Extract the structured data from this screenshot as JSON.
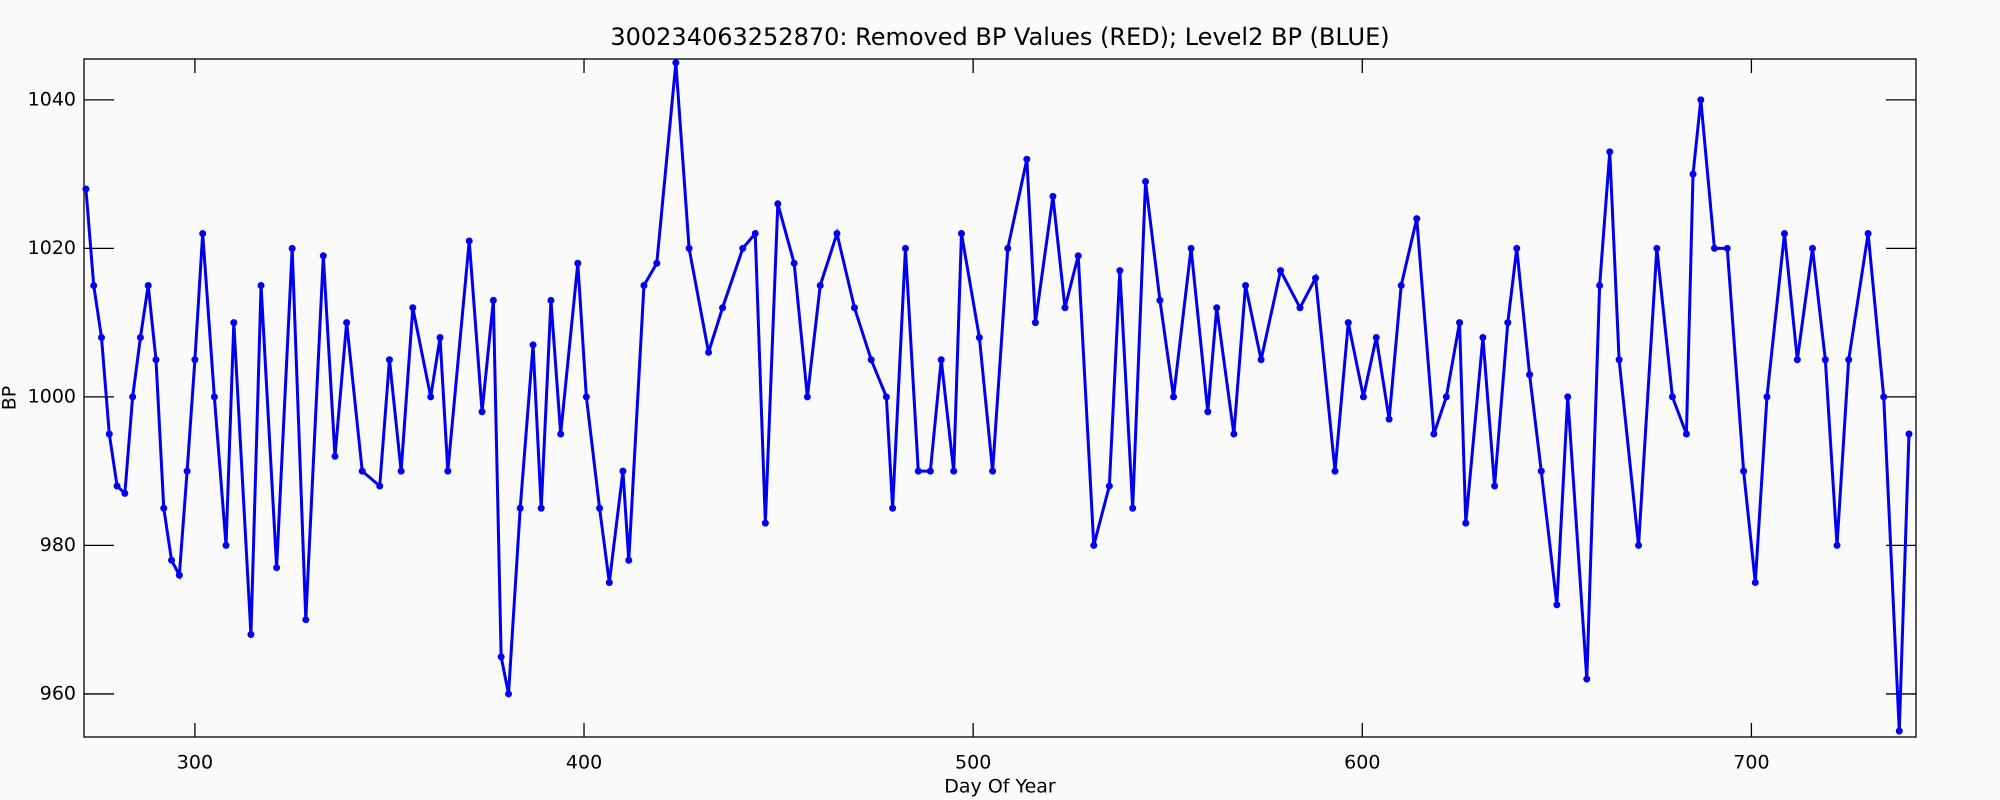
{
  "chart_data": {
    "type": "scatter",
    "title": "300234063252870: Removed BP Values (RED); Level2 BP (BLUE)",
    "x_label": "Day Of Year",
    "y_label": "BP",
    "xlim": [
      271.5,
      742.3
    ],
    "ylim": [
      954.2,
      1045.5
    ],
    "xticks": [
      300,
      400,
      500,
      600,
      700
    ],
    "yticks": [
      960,
      980,
      1000,
      1020,
      1040
    ],
    "series": [
      {
        "name": "Level2 BP",
        "color": "#0000ee",
        "x": [
          272,
          274,
          276,
          278,
          280,
          282,
          284,
          286,
          288,
          290,
          292,
          294,
          296,
          298,
          300,
          302,
          305,
          308,
          310,
          314.4,
          317,
          321,
          325,
          328.5,
          333,
          336,
          339,
          343,
          347.5,
          350,
          353,
          356,
          360.6,
          363,
          365,
          370.5,
          373.8,
          376.7,
          378.7,
          380.6,
          383.6,
          386.9,
          389,
          391.5,
          394,
          398.4,
          400.6,
          404,
          406.5,
          410,
          411.5,
          415.4,
          418.7,
          423.6,
          427,
          432,
          435.6,
          440.8,
          444,
          446.6,
          449.8,
          454,
          457.4,
          460.7,
          465,
          469.5,
          473.8,
          477.7,
          479.3,
          482.6,
          485.9,
          489,
          491.8,
          495,
          497,
          501.6,
          505,
          508.9,
          513.8,
          516,
          520.5,
          523.6,
          527,
          531,
          535,
          537.7,
          541,
          544.3,
          548,
          551.5,
          556,
          560.3,
          562.6,
          567,
          570,
          574,
          579,
          584,
          588,
          593,
          596.4,
          600.3,
          603.6,
          606.9,
          610,
          614,
          618.4,
          621.6,
          625,
          626.6,
          631,
          634,
          637.4,
          639.7,
          643,
          646,
          650,
          652.8,
          657.7,
          661,
          663.6,
          666,
          671,
          675.7,
          679.7,
          683.3,
          685,
          687,
          690.5,
          693.8,
          698,
          701,
          704,
          708.5,
          711.8,
          715.7,
          719,
          722,
          725,
          730,
          734,
          738,
          740.5
        ],
        "values": [
          1028,
          1015,
          1008,
          995,
          988,
          987,
          1000,
          1008,
          1015,
          1005,
          985,
          978,
          976,
          990,
          1005,
          1022,
          1000,
          980,
          1010,
          968,
          1015,
          977,
          1020,
          970,
          1019,
          992,
          1010,
          990,
          988,
          1005,
          990,
          1012,
          1000,
          1008,
          990,
          1021,
          998,
          1013,
          965,
          960,
          985,
          1007,
          985,
          1013,
          995,
          1018,
          1000,
          985,
          975,
          990,
          978,
          1015,
          1018,
          1045,
          1020,
          1006,
          1012,
          1020,
          1022,
          983,
          1026,
          1018,
          1000,
          1015,
          1022,
          1012,
          1005,
          1000,
          985,
          1020,
          990,
          990,
          1005,
          990,
          1022,
          1008,
          990,
          1020,
          1032,
          1010,
          1027,
          1012,
          1019,
          980,
          988,
          1017,
          985,
          1029,
          1013,
          1000,
          1020,
          998,
          1012,
          995,
          1015,
          1005,
          1017,
          1012,
          1016,
          990,
          1010,
          1000,
          1008,
          997,
          1015,
          1024,
          995,
          1000,
          1010,
          983,
          1008,
          988,
          1010,
          1020,
          1003,
          990,
          972,
          1000,
          962,
          1015,
          1033,
          1005,
          980,
          1020,
          1000,
          995,
          1030,
          1040,
          1020,
          1020,
          990,
          975,
          1000,
          1022,
          1005,
          1020,
          1005,
          980,
          1005,
          1022,
          1000,
          955,
          995
        ]
      }
    ]
  }
}
